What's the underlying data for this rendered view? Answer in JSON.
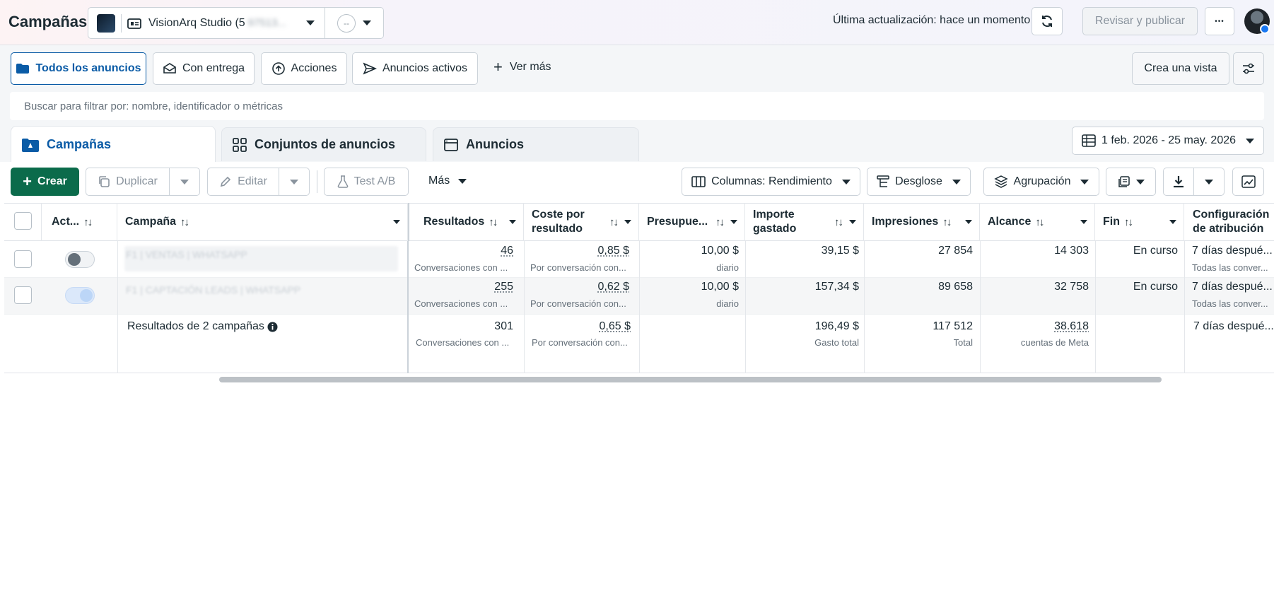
{
  "header": {
    "title": "Campañas",
    "account_name": "VisionArq Studio (5",
    "account_id_blurred": "97513...",
    "secondary_value": "--",
    "last_update": "Última actualización: hace un momento",
    "review_publish": "Revisar y publicar",
    "more_glyph": "•••"
  },
  "filters": {
    "items": [
      {
        "label": "Todos los anuncios"
      },
      {
        "label": "Con entrega"
      },
      {
        "label": "Acciones"
      },
      {
        "label": "Anuncios activos"
      }
    ],
    "see_more": "Ver más",
    "create_view": "Crea una vista",
    "search_placeholder": "Buscar para filtrar por: nombre, identificador o métricas"
  },
  "tabs": [
    {
      "label": "Campañas"
    },
    {
      "label": "Conjuntos de anuncios"
    },
    {
      "label": "Anuncios"
    }
  ],
  "date_range": "1 feb. 2026 - 25 may. 2026",
  "toolbar": {
    "create": "Crear",
    "duplicate": "Duplicar",
    "edit": "Editar",
    "ab_test": "Test A/B",
    "more": "Más",
    "columns": "Columnas: Rendimiento",
    "breakdown": "Desglose",
    "grouping": "Agrupación"
  },
  "table": {
    "headers": {
      "active": "Act...",
      "campaign": "Campaña",
      "results": "Resultados",
      "cost_per_result_1": "Coste por",
      "cost_per_result_2": "resultado",
      "budget": "Presupue...",
      "amount_spent_1": "Importe",
      "amount_spent_2": "gastado",
      "impressions": "Impresiones",
      "reach": "Alcance",
      "end": "Fin",
      "attribution_1": "Configuración",
      "attribution_2": "de atribución"
    },
    "rows": [
      {
        "name": "F1 | VENTAS | WHATSAPP",
        "results": "46",
        "results_sub": "Conversaciones con ...",
        "cost": "0,85 $",
        "cost_sub": "Por conversación con...",
        "budget": "10,00 $",
        "budget_sub": "diario",
        "spent": "39,15 $",
        "impressions": "27 854",
        "reach": "14 303",
        "end": "En curso",
        "attribution": "7 días despué...",
        "attribution_sub": "Todas las conver..."
      },
      {
        "name": "F1 | CAPTACIÓN LEADS | WHATSAPP",
        "results": "255",
        "results_sub": "Conversaciones con ...",
        "cost": "0,62 $",
        "cost_sub": "Por conversación con...",
        "budget": "10,00 $",
        "budget_sub": "diario",
        "spent": "157,34 $",
        "impressions": "89 658",
        "reach": "32 758",
        "end": "En curso",
        "attribution": "7 días despué...",
        "attribution_sub": "Todas las conver..."
      }
    ],
    "totals": {
      "label": "Resultados de 2 campañas",
      "results": "301",
      "results_sub": "Conversaciones con ...",
      "cost": "0,65 $",
      "cost_sub": "Por conversación con...",
      "spent": "196,49 $",
      "spent_sub": "Gasto total",
      "impressions": "117 512",
      "impressions_sub": "Total",
      "reach": "38.618",
      "reach_sub": "cuentas de Meta",
      "attribution": "7 días despué..."
    }
  },
  "colors": {
    "primary_green": "#0b6b4b",
    "active_blue": "#0a5ba6",
    "toggle_on": "#bcd6f7"
  }
}
